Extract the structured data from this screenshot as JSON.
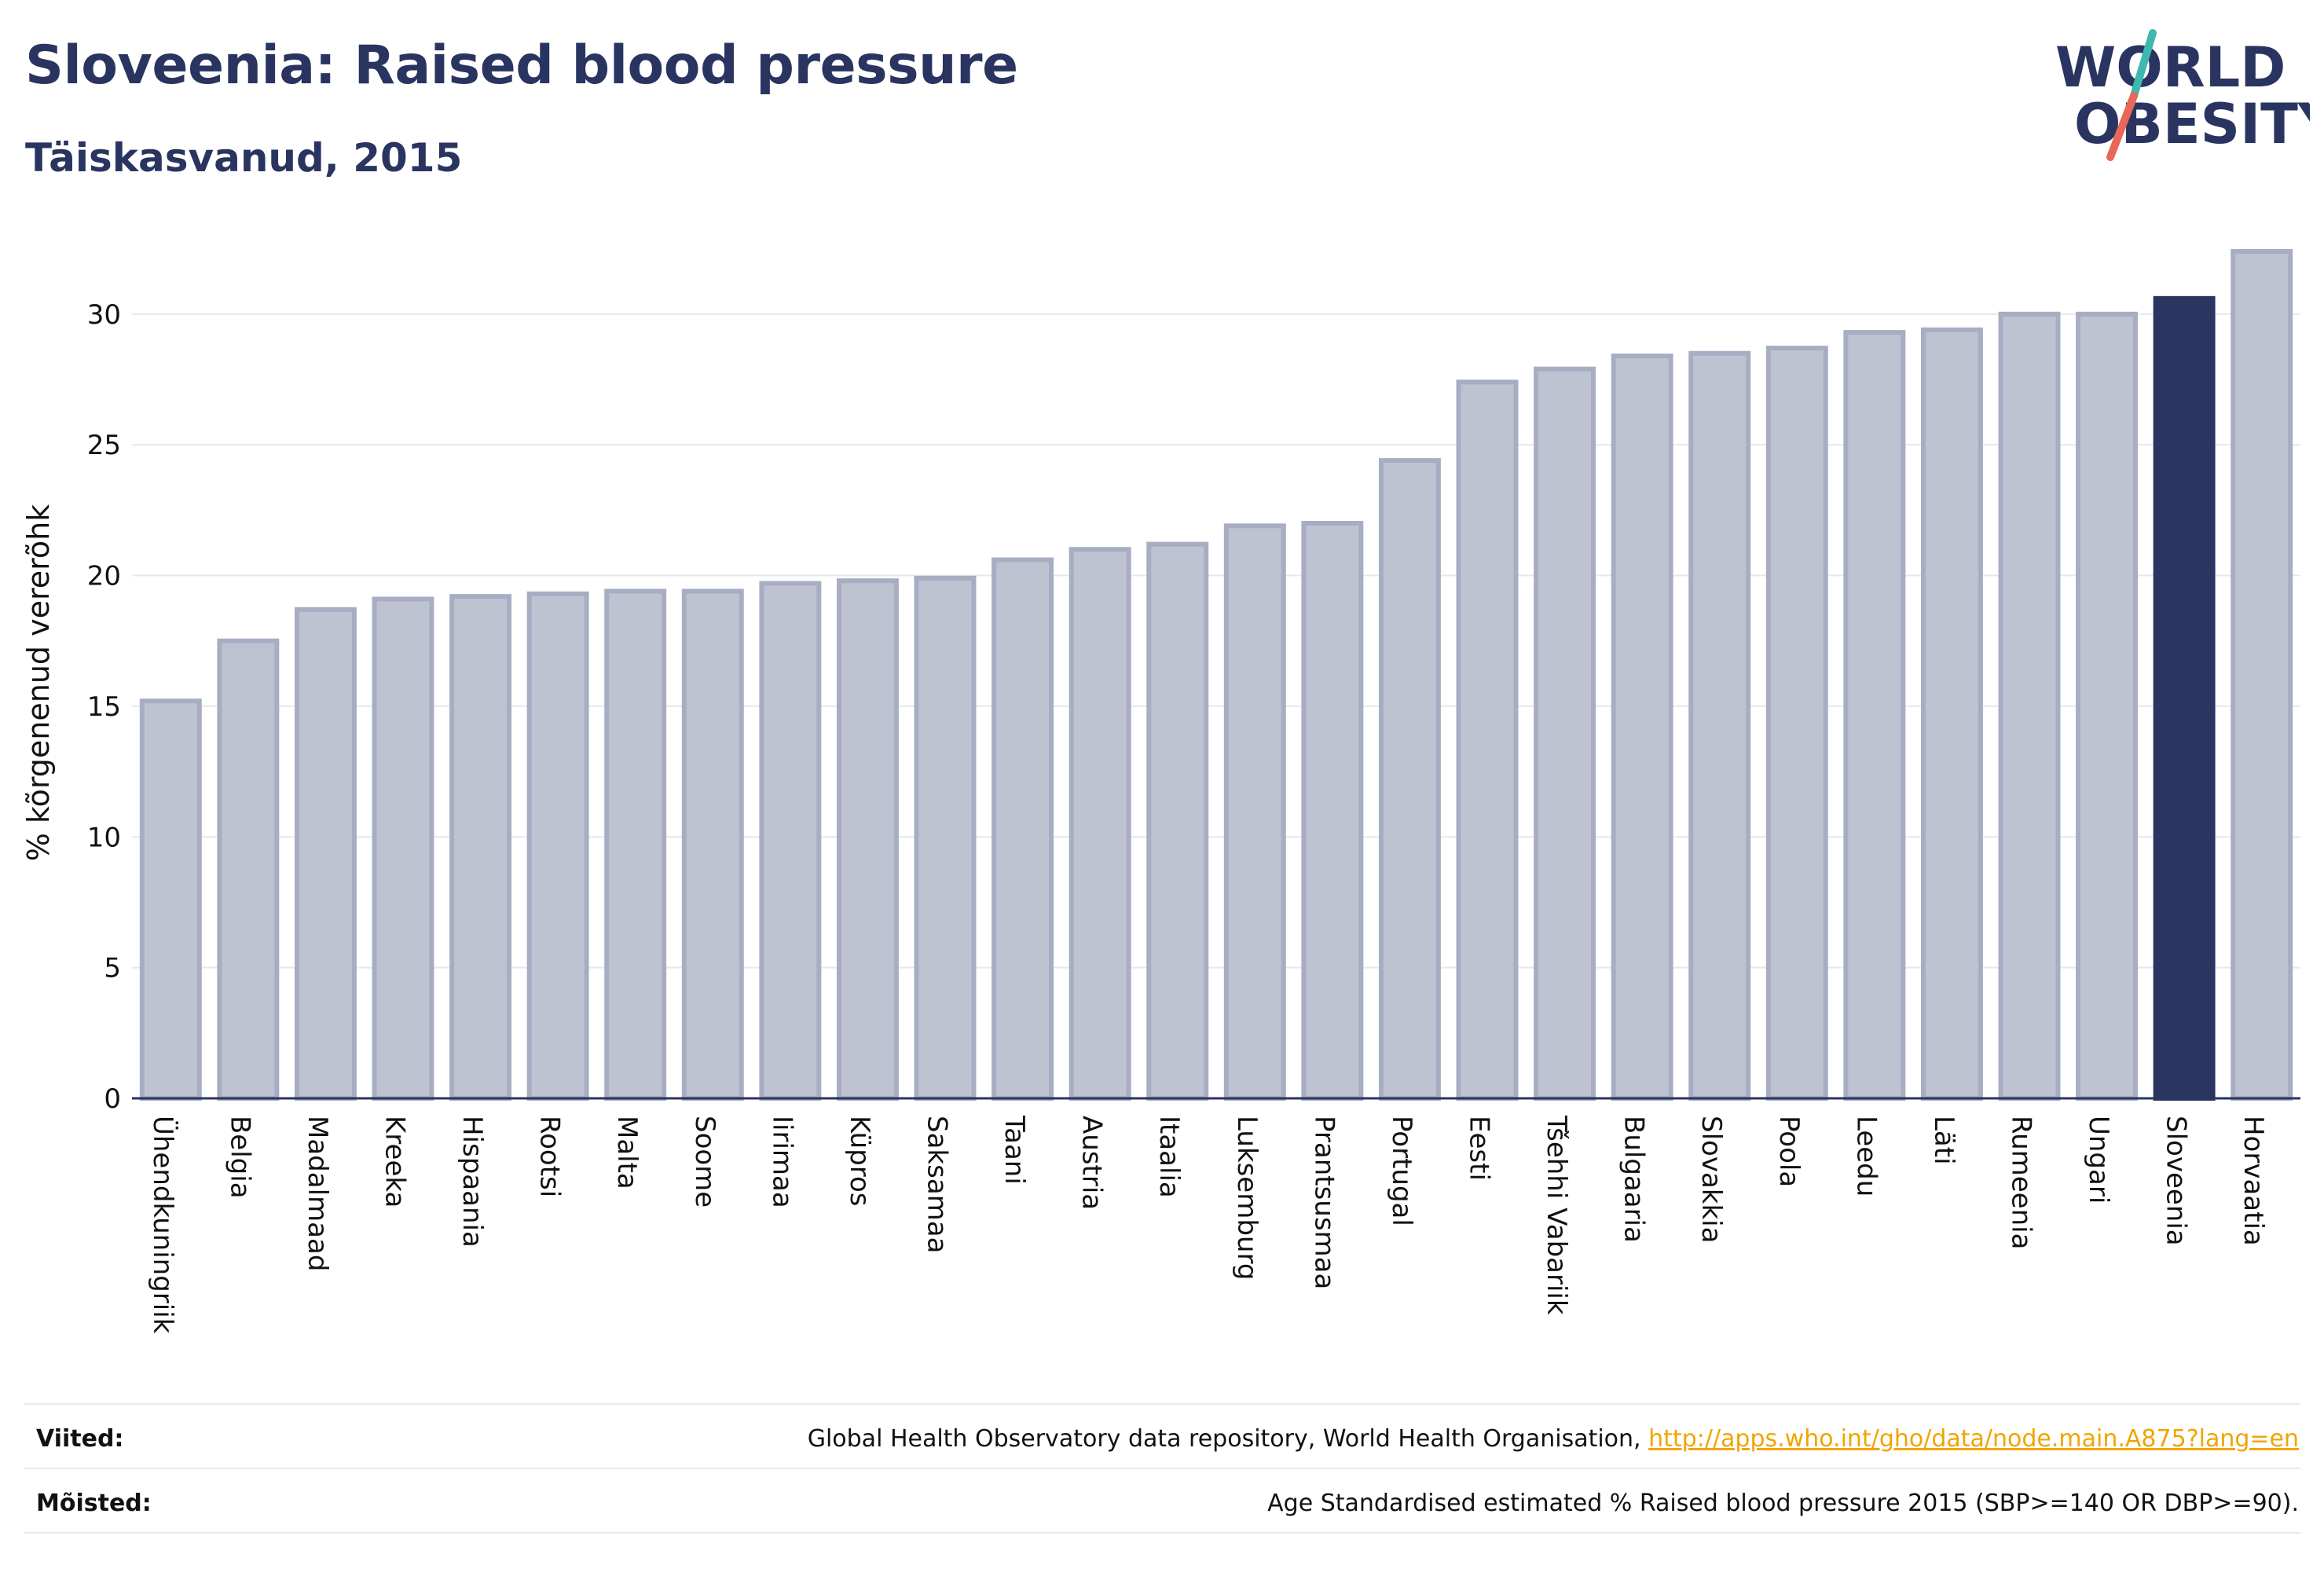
{
  "header": {
    "title": "Sloveenia: Raised blood pressure",
    "subtitle": "Täiskasvanud, 2015"
  },
  "logo": {
    "line1": "WORLD",
    "line2": "OBESITY",
    "colors": {
      "text": "#2a3460",
      "slash_top": "#3fb8b0",
      "slash_bottom": "#e8675a"
    }
  },
  "chart_data": {
    "type": "bar",
    "ylabel": "% kõrgenenud vererõhk",
    "ylim": [
      0,
      33
    ],
    "yticks": [
      0,
      5,
      10,
      15,
      20,
      25,
      30
    ],
    "grid": true,
    "categories": [
      "Ühendkuningriik",
      "Belgia",
      "Madalmaad",
      "Kreeka",
      "Hispaania",
      "Rootsi",
      "Malta",
      "Soome",
      "Iirimaa",
      "Küpros",
      "Saksamaa",
      "Taani",
      "Austria",
      "Itaalia",
      "Luksemburg",
      "Prantsusmaa",
      "Portugal",
      "Eesti",
      "Tšehhi Vabariik",
      "Bulgaaria",
      "Slovakkia",
      "Poola",
      "Leedu",
      "Läti",
      "Rumeenia",
      "Ungari",
      "Sloveenia",
      "Horvaatia"
    ],
    "values": [
      15.2,
      17.5,
      18.7,
      19.1,
      19.2,
      19.3,
      19.4,
      19.4,
      19.7,
      19.8,
      19.9,
      20.6,
      21.0,
      21.2,
      21.9,
      22.0,
      24.4,
      27.4,
      27.9,
      28.4,
      28.5,
      28.7,
      29.3,
      29.4,
      30.0,
      30.0,
      30.6,
      32.4
    ],
    "highlight": "Sloveenia",
    "colors": {
      "bar": "#bfc3d1",
      "bar_border": "#a7adc2",
      "highlight": "#2b3562",
      "grid": "#e6e8ee",
      "axis": "#2a3460"
    }
  },
  "footer": {
    "sources_label": "Viited:",
    "sources_text": "Global Health Observatory data repository, World Health Organisation,",
    "sources_link": "http://apps.who.int/gho/data/node.main.A875?lang=en",
    "definitions_label": "Mõisted:",
    "definitions_text": "Age Standardised estimated % Raised blood pressure 2015 (SBP>=140 OR DBP>=90)."
  }
}
